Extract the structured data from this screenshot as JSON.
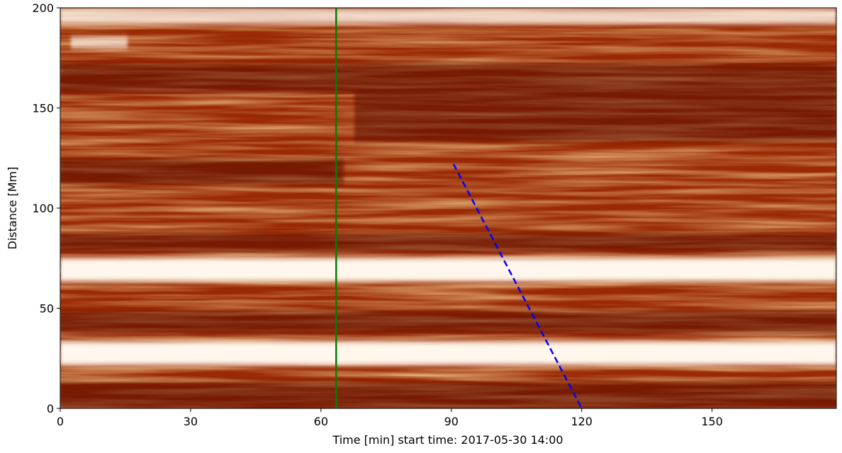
{
  "chart_data": {
    "type": "image",
    "xlabel": "Time [min] start time: 2017-05-30 14:00",
    "ylabel": "Distance [Mm]",
    "xlim": [
      0,
      178.6
    ],
    "ylim": [
      0,
      200
    ],
    "xticks": [
      0,
      30,
      60,
      90,
      120,
      150
    ],
    "yticks": [
      0,
      50,
      100,
      150,
      200
    ],
    "vline": {
      "x": 63.5,
      "color": "#008000"
    },
    "series": [
      {
        "color": "#0000ff",
        "dashed": true,
        "x": [
          90.5,
          120
        ],
        "values": [
          122,
          0
        ]
      }
    ]
  }
}
